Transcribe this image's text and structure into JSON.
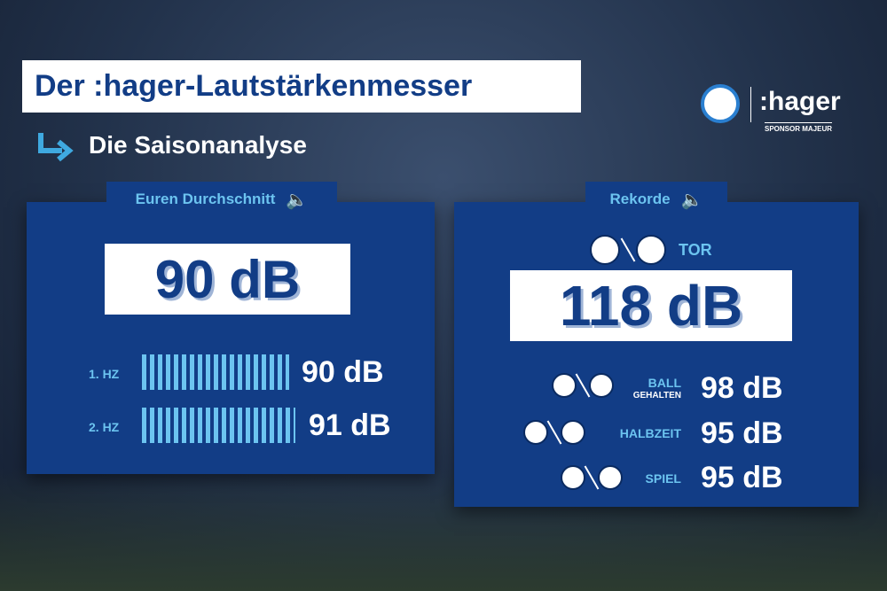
{
  "header": {
    "title": "Der :hager-Lautstärkenmesser",
    "subtitle": "Die Saisonanalyse"
  },
  "sponsor": {
    "brand": ":hager",
    "tagline": "SPONSOR MAJEUR"
  },
  "average": {
    "label": "Euren Durchschnitt",
    "value": "90 dB",
    "halves": [
      {
        "label": "1. HZ",
        "value": "90 dB"
      },
      {
        "label": "2. HZ",
        "value": "91 dB"
      }
    ]
  },
  "records": {
    "label": "Rekorde",
    "main": {
      "label": "TOR",
      "value": "118 dB"
    },
    "items": [
      {
        "label": "BALL",
        "sublabel": "GEHALTEN",
        "value": "98 dB"
      },
      {
        "label": "HALBZEIT",
        "value": "95 dB"
      },
      {
        "label": "SPIEL",
        "value": "95 dB"
      }
    ]
  }
}
